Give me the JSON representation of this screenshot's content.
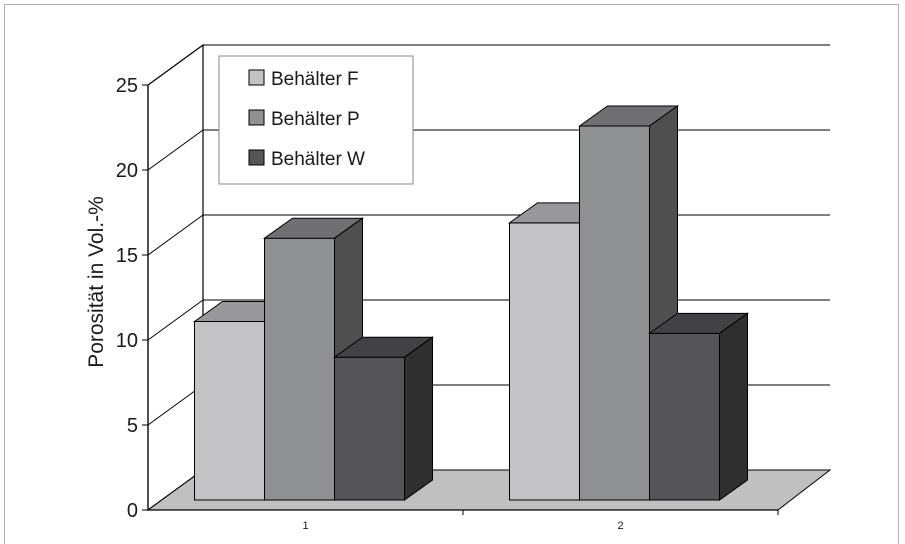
{
  "chart_data": {
    "type": "bar",
    "title": "",
    "xlabel": "",
    "ylabel": "Porosität in Vol.-%",
    "categories": [
      "1",
      "2"
    ],
    "ylim": [
      0,
      25
    ],
    "yticks": [
      "0",
      "5",
      "10",
      "15",
      "20",
      "25"
    ],
    "grid": true,
    "three_d": true,
    "legend_position": "top-left",
    "series": [
      {
        "name": "Behälter F",
        "values": [
          10.5,
          16.3
        ],
        "color": "#c3c3c5"
      },
      {
        "name": "Behälter P",
        "values": [
          15.4,
          22.0
        ],
        "color": "#8f9092"
      },
      {
        "name": "Behälter W",
        "values": [
          8.4,
          9.8
        ],
        "color": "#555557"
      }
    ]
  }
}
